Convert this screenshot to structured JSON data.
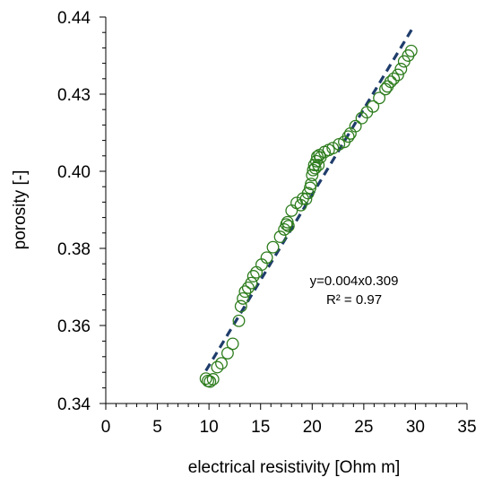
{
  "chart_data": {
    "type": "scatter",
    "title": "",
    "xlabel": "electrical resistivity [Ohm m]",
    "ylabel": "porosity [-]",
    "xlim": [
      0,
      35
    ],
    "ylim": [
      0.34,
      0.44
    ],
    "x_ticks": [
      "0",
      "5",
      "10",
      "15",
      "20",
      "25",
      "30",
      "35"
    ],
    "y_ticks": [
      "0.34",
      "0.36",
      "0.38",
      "0.40",
      "0.43",
      "0.44"
    ],
    "grid": false,
    "legend": "none",
    "colors": {
      "points": "#2e7d1e",
      "trendline": "#1f3d6b"
    },
    "series": [
      {
        "marker": "open-circle",
        "points": [
          [
            9.7,
            0.3464
          ],
          [
            9.9,
            0.3458
          ],
          [
            10.1,
            0.3456
          ],
          [
            10.4,
            0.3462
          ],
          [
            10.8,
            0.3493
          ],
          [
            11.2,
            0.3503
          ],
          [
            11.8,
            0.3529
          ],
          [
            12.3,
            0.3553
          ],
          [
            12.9,
            0.3612
          ],
          [
            13.1,
            0.365
          ],
          [
            13.3,
            0.367
          ],
          [
            13.5,
            0.3688
          ],
          [
            13.8,
            0.3698
          ],
          [
            14.1,
            0.371
          ],
          [
            14.3,
            0.3728
          ],
          [
            14.6,
            0.3738
          ],
          [
            15.1,
            0.3758
          ],
          [
            15.6,
            0.3776
          ],
          [
            16.2,
            0.3803
          ],
          [
            16.9,
            0.383
          ],
          [
            17.3,
            0.3849
          ],
          [
            17.5,
            0.3862
          ],
          [
            17.6,
            0.3868
          ],
          [
            17.7,
            0.3858
          ],
          [
            18.0,
            0.3898
          ],
          [
            18.5,
            0.3918
          ],
          [
            18.9,
            0.3912
          ],
          [
            19.1,
            0.3929
          ],
          [
            19.4,
            0.3928
          ],
          [
            19.6,
            0.3943
          ],
          [
            19.8,
            0.3957
          ],
          [
            19.9,
            0.3967
          ],
          [
            20.0,
            0.399
          ],
          [
            20.1,
            0.4003
          ],
          [
            20.2,
            0.4016
          ],
          [
            20.3,
            0.4008
          ],
          [
            20.4,
            0.4026
          ],
          [
            20.5,
            0.4038
          ],
          [
            20.6,
            0.4016
          ],
          [
            20.7,
            0.4042
          ],
          [
            20.8,
            0.4036
          ],
          [
            21.2,
            0.405
          ],
          [
            21.6,
            0.4055
          ],
          [
            22.0,
            0.406
          ],
          [
            22.6,
            0.407
          ],
          [
            23.1,
            0.4076
          ],
          [
            23.5,
            0.409
          ],
          [
            23.7,
            0.4098
          ],
          [
            24.2,
            0.4117
          ],
          [
            24.8,
            0.4138
          ],
          [
            25.3,
            0.4153
          ],
          [
            25.9,
            0.4168
          ],
          [
            26.5,
            0.419
          ],
          [
            27.1,
            0.4213
          ],
          [
            27.3,
            0.422
          ],
          [
            27.6,
            0.4232
          ],
          [
            27.9,
            0.424
          ],
          [
            28.3,
            0.425
          ],
          [
            28.6,
            0.4265
          ],
          [
            28.9,
            0.4285
          ],
          [
            29.3,
            0.43
          ],
          [
            29.6,
            0.4312
          ]
        ]
      }
    ],
    "trendline": {
      "style": "dashed",
      "points": [
        [
          9.7,
          0.3484
        ],
        [
          29.7,
          0.437
        ]
      ]
    },
    "annotations": [
      "y=0.004x0.309",
      "R² = 0.97"
    ]
  }
}
